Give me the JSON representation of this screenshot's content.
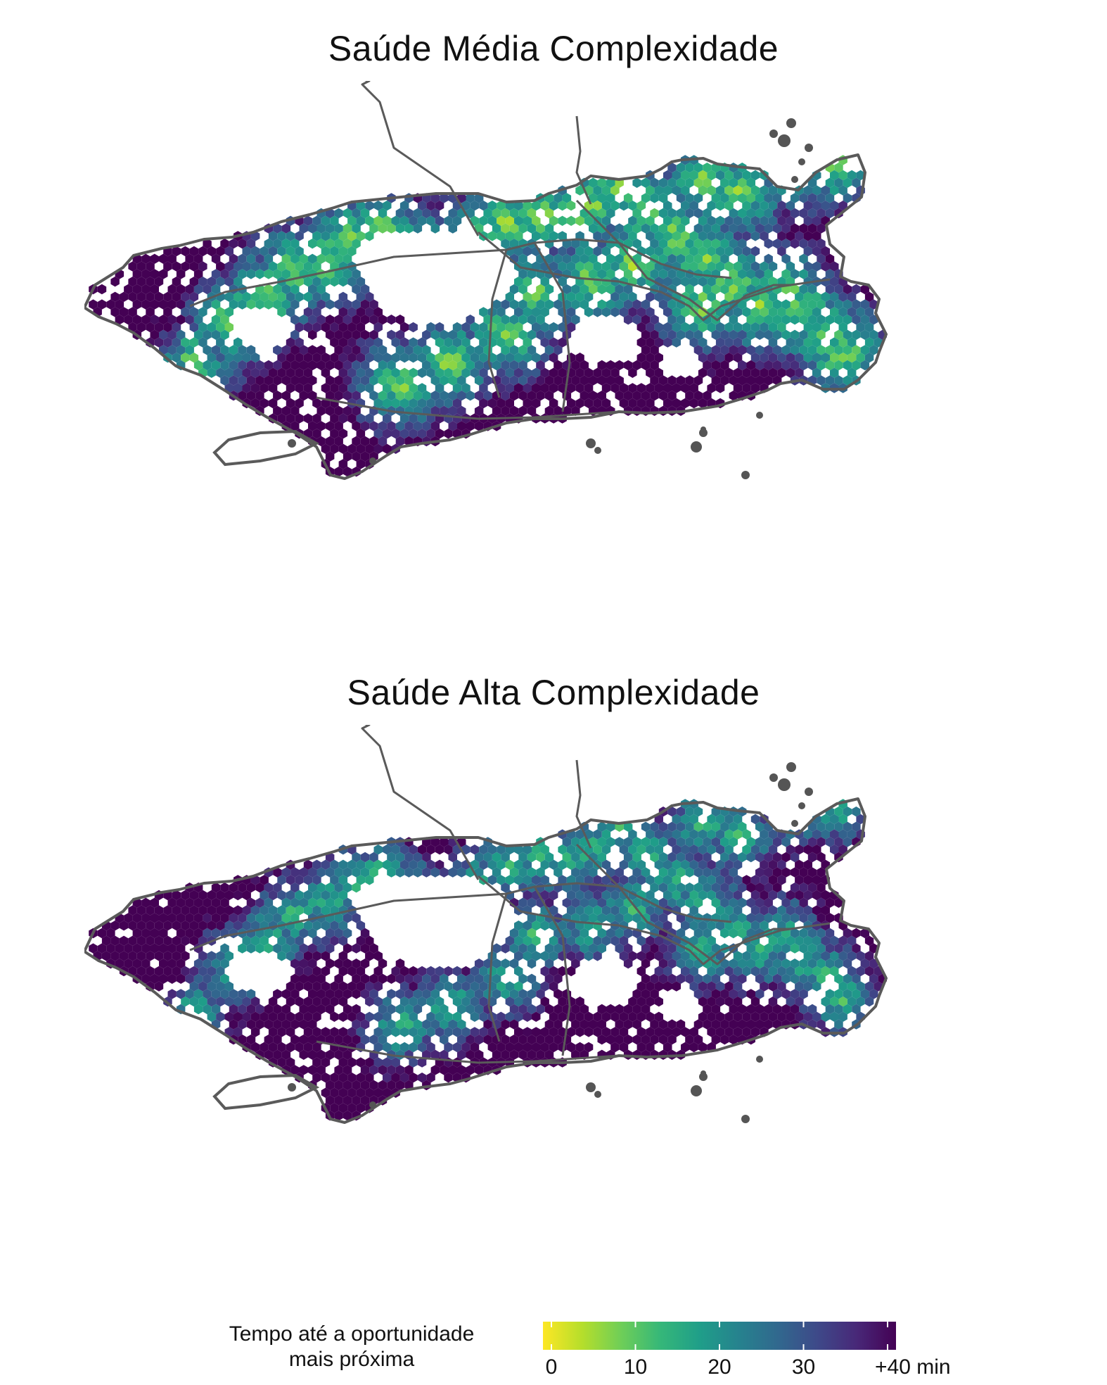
{
  "panels": [
    {
      "title": "Saúde Média Complexidade",
      "seed": 7,
      "darkness": 0.35
    },
    {
      "title": "Saúde Alta Complexidade",
      "seed": 19,
      "darkness": 0.62
    }
  ],
  "legend": {
    "title_line1": "Tempo até a oportunidade",
    "title_line2": "mais próxima",
    "ticks": [
      {
        "value": 0,
        "label": "0"
      },
      {
        "value": 10,
        "label": "10"
      },
      {
        "value": 20,
        "label": "20"
      },
      {
        "value": 30,
        "label": "30"
      },
      {
        "value": 40,
        "label": "+40 min"
      }
    ],
    "range": [
      0,
      40
    ],
    "colors": [
      "#fde725",
      "#b5de2b",
      "#6ece58",
      "#35b779",
      "#1f9e89",
      "#26828e",
      "#31688e",
      "#3e4989",
      "#482878",
      "#440154"
    ]
  },
  "outline_color": "#5a5a5a",
  "island_color": "#555555"
}
